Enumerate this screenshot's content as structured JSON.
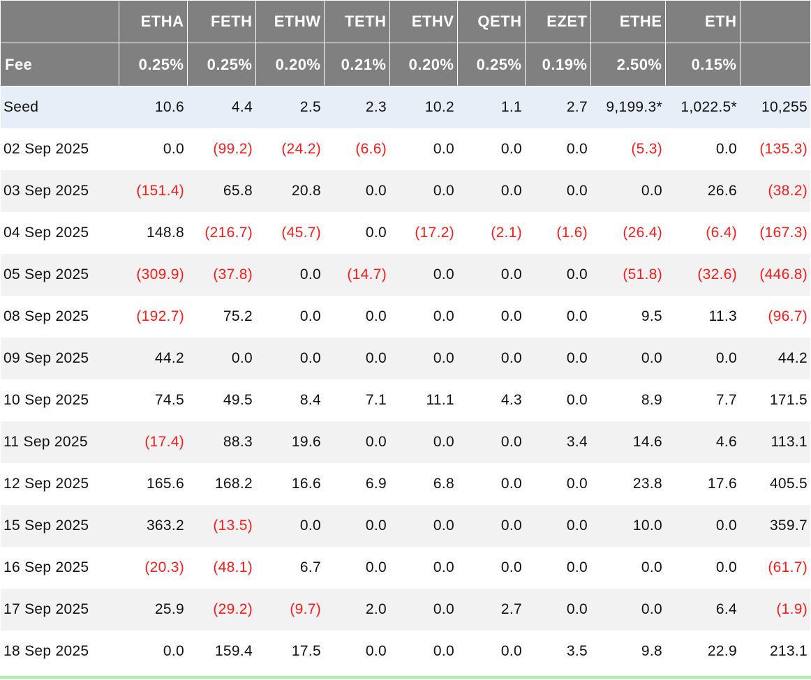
{
  "columns": [
    "ETHA",
    "FETH",
    "ETHW",
    "TETH",
    "ETHV",
    "QETH",
    "EZET",
    "ETHE",
    "ETH",
    ""
  ],
  "fee": {
    "label": "Fee",
    "values": [
      "0.25%",
      "0.25%",
      "0.20%",
      "0.21%",
      "0.20%",
      "0.25%",
      "0.19%",
      "2.50%",
      "0.15%",
      ""
    ]
  },
  "seed": {
    "label": "Seed",
    "values": [
      "10.6",
      "4.4",
      "2.5",
      "2.3",
      "10.2",
      "1.1",
      "2.7",
      "9,199.3*",
      "1,022.5*",
      "10,255"
    ]
  },
  "rows": [
    {
      "date": "02 Sep 2025",
      "values": [
        "0.0",
        "(99.2)",
        "(24.2)",
        "(6.6)",
        "0.0",
        "0.0",
        "0.0",
        "(5.3)",
        "0.0",
        "(135.3)"
      ]
    },
    {
      "date": "03 Sep 2025",
      "values": [
        "(151.4)",
        "65.8",
        "20.8",
        "0.0",
        "0.0",
        "0.0",
        "0.0",
        "0.0",
        "26.6",
        "(38.2)"
      ]
    },
    {
      "date": "04 Sep 2025",
      "values": [
        "148.8",
        "(216.7)",
        "(45.7)",
        "0.0",
        "(17.2)",
        "(2.1)",
        "(1.6)",
        "(26.4)",
        "(6.4)",
        "(167.3)"
      ]
    },
    {
      "date": "05 Sep 2025",
      "values": [
        "(309.9)",
        "(37.8)",
        "0.0",
        "(14.7)",
        "0.0",
        "0.0",
        "0.0",
        "(51.8)",
        "(32.6)",
        "(446.8)"
      ]
    },
    {
      "date": "08 Sep 2025",
      "values": [
        "(192.7)",
        "75.2",
        "0.0",
        "0.0",
        "0.0",
        "0.0",
        "0.0",
        "9.5",
        "11.3",
        "(96.7)"
      ]
    },
    {
      "date": "09 Sep 2025",
      "values": [
        "44.2",
        "0.0",
        "0.0",
        "0.0",
        "0.0",
        "0.0",
        "0.0",
        "0.0",
        "0.0",
        "44.2"
      ]
    },
    {
      "date": "10 Sep 2025",
      "values": [
        "74.5",
        "49.5",
        "8.4",
        "7.1",
        "11.1",
        "4.3",
        "0.0",
        "8.9",
        "7.7",
        "171.5"
      ]
    },
    {
      "date": "11 Sep 2025",
      "values": [
        "(17.4)",
        "88.3",
        "19.6",
        "0.0",
        "0.0",
        "0.0",
        "3.4",
        "14.6",
        "4.6",
        "113.1"
      ]
    },
    {
      "date": "12 Sep 2025",
      "values": [
        "165.6",
        "168.2",
        "16.6",
        "6.9",
        "6.8",
        "0.0",
        "0.0",
        "23.8",
        "17.6",
        "405.5"
      ]
    },
    {
      "date": "15 Sep 2025",
      "values": [
        "363.2",
        "(13.5)",
        "0.0",
        "0.0",
        "0.0",
        "0.0",
        "0.0",
        "10.0",
        "0.0",
        "359.7"
      ]
    },
    {
      "date": "16 Sep 2025",
      "values": [
        "(20.3)",
        "(48.1)",
        "6.7",
        "0.0",
        "0.0",
        "0.0",
        "0.0",
        "0.0",
        "0.0",
        "(61.7)"
      ]
    },
    {
      "date": "17 Sep 2025",
      "values": [
        "25.9",
        "(29.2)",
        "(9.7)",
        "2.0",
        "0.0",
        "2.7",
        "0.0",
        "0.0",
        "6.4",
        "(1.9)"
      ]
    },
    {
      "date": "18 Sep 2025",
      "values": [
        "0.0",
        "159.4",
        "17.5",
        "0.0",
        "0.0",
        "0.0",
        "3.5",
        "9.8",
        "22.9",
        "213.1"
      ]
    }
  ],
  "colors": {
    "header_bg": "#808080",
    "header_text": "#ffffff",
    "seed_row_bg": "#e8eef8",
    "striped_row_bg": "#f2f2f2",
    "negative_text": "#ff1a1a",
    "bottom_accent": "#a8f0a8"
  }
}
